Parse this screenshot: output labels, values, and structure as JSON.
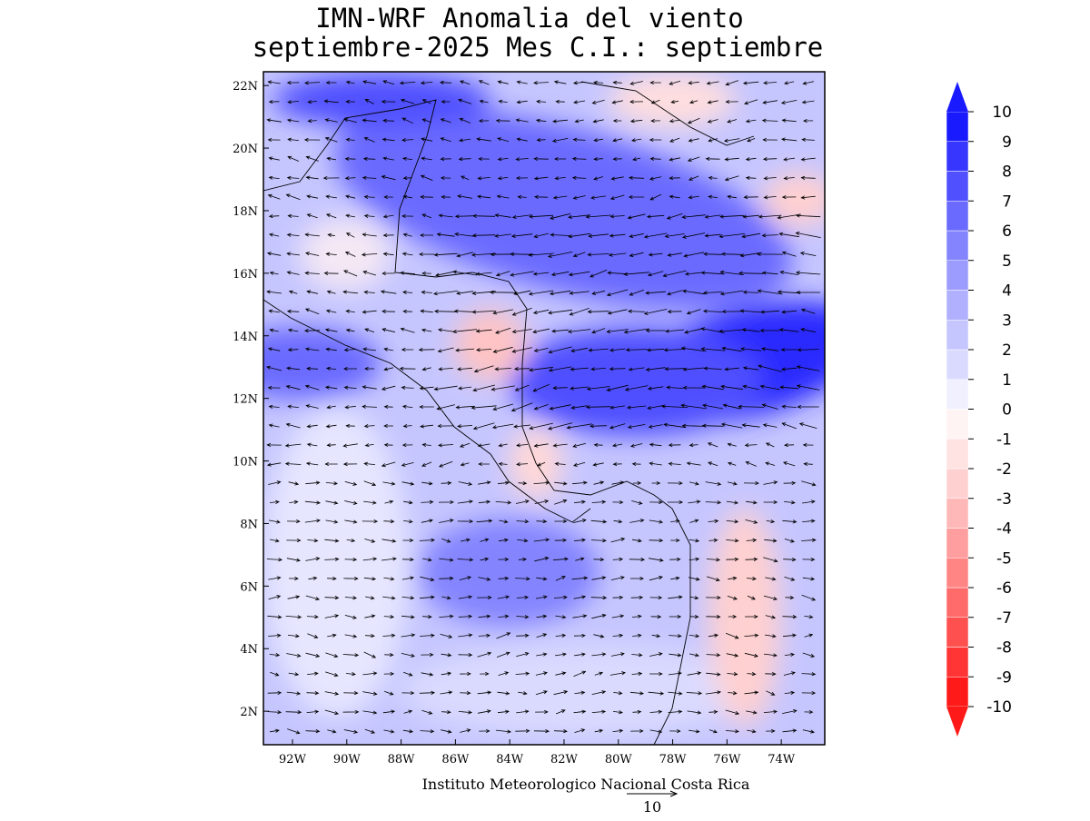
{
  "title": [
    "IMN-WRF Anomalia del viento",
    "septiembre-2025 Mes C.I.: septiembre"
  ],
  "map": {
    "latlim": [
      0.93,
      22.44
    ],
    "lonlim": [
      -93.07,
      -72.4
    ],
    "lat_ticks": [
      {
        "value": 2,
        "label": "2N"
      },
      {
        "value": 4,
        "label": "4N"
      },
      {
        "value": 6,
        "label": "6N"
      },
      {
        "value": 8,
        "label": "8N"
      },
      {
        "value": 10,
        "label": "10N"
      },
      {
        "value": 12,
        "label": "12N"
      },
      {
        "value": 14,
        "label": "14N"
      },
      {
        "value": 16,
        "label": "16N"
      },
      {
        "value": 18,
        "label": "18N"
      },
      {
        "value": 20,
        "label": "20N"
      },
      {
        "value": 22,
        "label": "22N"
      }
    ],
    "lon_ticks": [
      {
        "value": -92,
        "label": "92W"
      },
      {
        "value": -90,
        "label": "90W"
      },
      {
        "value": -88,
        "label": "88W"
      },
      {
        "value": -86,
        "label": "86W"
      },
      {
        "value": -84,
        "label": "84W"
      },
      {
        "value": -82,
        "label": "82W"
      },
      {
        "value": -80,
        "label": "80W"
      },
      {
        "value": -78,
        "label": "78W"
      },
      {
        "value": -76,
        "label": "76W"
      },
      {
        "value": -74,
        "label": "74W"
      }
    ]
  },
  "colorbar": {
    "levels": [
      -10,
      -9,
      -8,
      -7,
      -6,
      -5,
      -4,
      -3,
      -2,
      -1,
      0,
      1,
      2,
      3,
      4,
      5,
      6,
      7,
      8,
      9,
      10
    ],
    "colors": [
      "#ff1a1a",
      "#ff3535",
      "#ff5050",
      "#ff6a6a",
      "#ff8585",
      "#ff9e9e",
      "#ffb8b8",
      "#ffd0d0",
      "#ffe2e2",
      "#fff4f4",
      "#f0f0ff",
      "#dadaff",
      "#c6c6ff",
      "#b0b0ff",
      "#9c9cff",
      "#8484ff",
      "#6a6aff",
      "#5050ff",
      "#3636ff",
      "#1a1aff"
    ]
  },
  "footer": "Instituto Meteorologico Nacional Costa Rica",
  "reference_vector": {
    "value": 10
  }
}
